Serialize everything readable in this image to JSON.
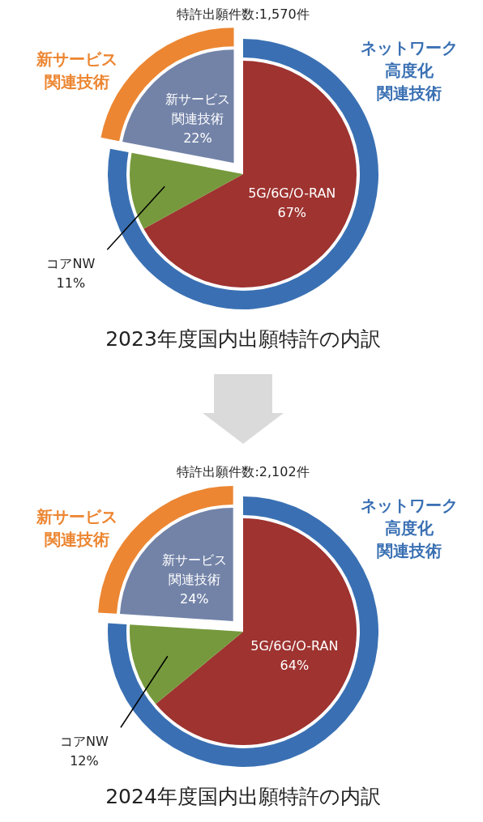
{
  "chart_data": [
    {
      "type": "donut",
      "subtitle": "特許出願件数:1,570件",
      "title": "2023年度国内出願特許の内訳",
      "categories": [
        "ネットワーク高度化関連技術",
        "新サービス関連技術"
      ],
      "values": [
        78,
        22
      ],
      "colors": [
        "#3a70b3",
        "#ec8632"
      ]
    },
    {
      "type": "pie",
      "categories": [
        "5G/6G/O-RAN",
        "コアNW",
        "新サービス関連技術"
      ],
      "values": [
        67,
        11,
        22
      ],
      "colors": [
        "#9e3330",
        "#76993d",
        "#7383a8"
      ],
      "value_labels": [
        "67%",
        "11%",
        "22%"
      ]
    },
    {
      "type": "donut",
      "subtitle": "特許出願件数:2,102件",
      "title": "2024年度国内出願特許の内訳",
      "categories": [
        "ネットワーク高度化関連技術",
        "新サービス関連技術"
      ],
      "values": [
        76,
        24
      ],
      "colors": [
        "#3a70b3",
        "#ec8632"
      ]
    },
    {
      "type": "pie",
      "categories": [
        "5G/6G/O-RAN",
        "コアNW",
        "新サービス関連技術"
      ],
      "values": [
        64,
        12,
        24
      ],
      "colors": [
        "#9e3330",
        "#76993d",
        "#7383a8"
      ],
      "value_labels": [
        "64%",
        "12%",
        "24%"
      ]
    }
  ]
}
